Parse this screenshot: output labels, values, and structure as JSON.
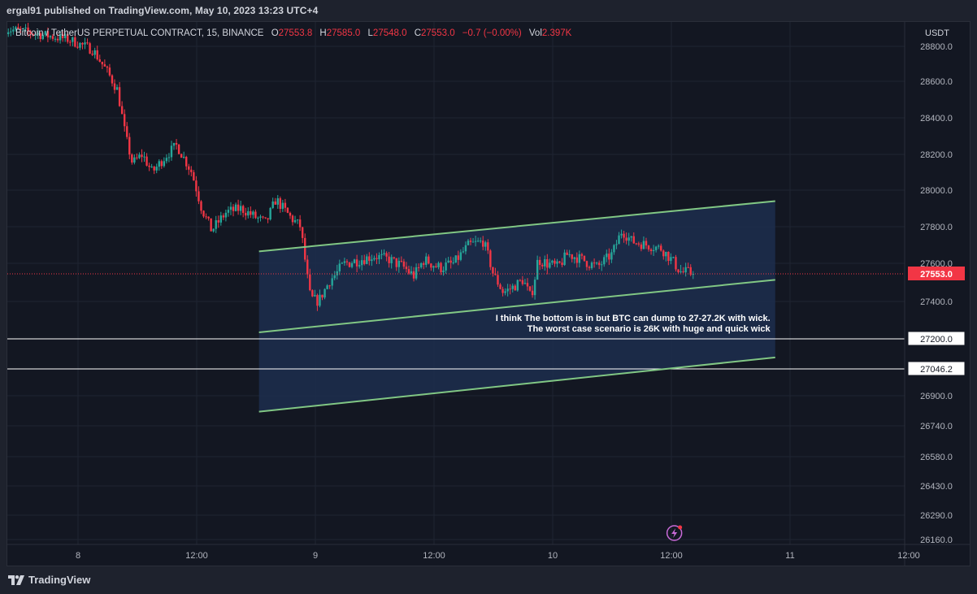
{
  "header": {
    "publisher_line": "ergal91 published on TradingView.com, May 10, 2023 13:23 UTC+4"
  },
  "legend": {
    "symbol": "Bitcoin / TetherUS PERPETUAL CONTRACT, 15, BINANCE",
    "o_label": "O",
    "o_value": "27553.8",
    "h_label": "H",
    "h_value": "27585.0",
    "l_label": "L",
    "l_value": "27548.0",
    "c_label": "C",
    "c_value": "27553.0",
    "change": "−0.7 (−0.00%)",
    "vol_label": "Vol",
    "vol_value": "2.397K"
  },
  "footer": {
    "brand": "TradingView"
  },
  "colors": {
    "background": "#131722",
    "grid": "#1f2432",
    "up": "#26a69a",
    "down": "#f23645",
    "channel_line": "#81c784",
    "channel_fill": "#1d2e4d",
    "text": "#d1d4dc"
  },
  "chart_data": {
    "type": "candlestick",
    "currency_label": "USDT",
    "y_ticks": [
      28800,
      28600,
      28400,
      28200,
      28000,
      27800,
      27600,
      27400,
      26900,
      26740,
      26580,
      26430,
      26290,
      26160
    ],
    "x_ticks": [
      {
        "label": "8",
        "t": 0
      },
      {
        "label": "12:00",
        "t": 12
      },
      {
        "label": "9",
        "t": 24
      },
      {
        "label": "12:00",
        "t": 36
      },
      {
        "label": "10",
        "t": 48
      },
      {
        "label": "12:00",
        "t": 60
      },
      {
        "label": "11",
        "t": 72
      },
      {
        "label": "12:00",
        "t": 84
      }
    ],
    "last_price": 27553.0,
    "levels": [
      27200.0,
      27046.2
    ],
    "annotation": [
      "I think The bottom is in but BTC can dump to 27-27.2K with wick.",
      "The worst case scenario is 26K with huge and quick wick"
    ],
    "channel": {
      "upper": {
        "t1": 18.3,
        "p1": 27665,
        "t2": 70.5,
        "p2": 27940
      },
      "middle": {
        "t1": 18.3,
        "p1": 27235,
        "t2": 70.5,
        "p2": 27520
      },
      "lower": {
        "t1": 18.3,
        "p1": 26815,
        "t2": 70.5,
        "p2": 27105
      }
    },
    "price_path": [
      {
        "t": -7.3,
        "p": 28900
      },
      {
        "t": -4,
        "p": 28870
      },
      {
        "t": -1,
        "p": 28840
      },
      {
        "t": 1.5,
        "p": 28780
      },
      {
        "t": 3,
        "p": 28650
      },
      {
        "t": 4,
        "p": 28550
      },
      {
        "t": 4.8,
        "p": 28300
      },
      {
        "t": 5.5,
        "p": 28150
      },
      {
        "t": 6.5,
        "p": 28200
      },
      {
        "t": 7.5,
        "p": 28100
      },
      {
        "t": 9,
        "p": 28200
      },
      {
        "t": 10,
        "p": 28250
      },
      {
        "t": 11.5,
        "p": 28100
      },
      {
        "t": 12.5,
        "p": 27900
      },
      {
        "t": 13.5,
        "p": 27780
      },
      {
        "t": 15,
        "p": 27880
      },
      {
        "t": 16.5,
        "p": 27900
      },
      {
        "t": 18,
        "p": 27850
      },
      {
        "t": 19,
        "p": 27820
      },
      {
        "t": 20,
        "p": 27950
      },
      {
        "t": 21.5,
        "p": 27850
      },
      {
        "t": 22.5,
        "p": 27800
      },
      {
        "t": 23,
        "p": 27600
      },
      {
        "t": 23.5,
        "p": 27420
      },
      {
        "t": 24.3,
        "p": 27400
      },
      {
        "t": 25.5,
        "p": 27520
      },
      {
        "t": 27,
        "p": 27600
      },
      {
        "t": 28.5,
        "p": 27620
      },
      {
        "t": 30,
        "p": 27640
      },
      {
        "t": 31.5,
        "p": 27620
      },
      {
        "t": 33,
        "p": 27580
      },
      {
        "t": 34,
        "p": 27540
      },
      {
        "t": 35,
        "p": 27620
      },
      {
        "t": 36.5,
        "p": 27580
      },
      {
        "t": 38,
        "p": 27600
      },
      {
        "t": 39.5,
        "p": 27700
      },
      {
        "t": 41,
        "p": 27720
      },
      {
        "t": 42,
        "p": 27550
      },
      {
        "t": 43,
        "p": 27450
      },
      {
        "t": 44,
        "p": 27480
      },
      {
        "t": 45,
        "p": 27520
      },
      {
        "t": 45.8,
        "p": 27420
      },
      {
        "t": 46.5,
        "p": 27620
      },
      {
        "t": 47.5,
        "p": 27600
      },
      {
        "t": 48.5,
        "p": 27580
      },
      {
        "t": 49.5,
        "p": 27650
      },
      {
        "t": 51,
        "p": 27620
      },
      {
        "t": 52.5,
        "p": 27580
      },
      {
        "t": 54,
        "p": 27650
      },
      {
        "t": 55,
        "p": 27780
      },
      {
        "t": 56,
        "p": 27720
      },
      {
        "t": 57.5,
        "p": 27700
      },
      {
        "t": 59,
        "p": 27680
      },
      {
        "t": 60,
        "p": 27620
      },
      {
        "t": 61,
        "p": 27560
      },
      {
        "t": 62.3,
        "p": 27553
      }
    ]
  }
}
